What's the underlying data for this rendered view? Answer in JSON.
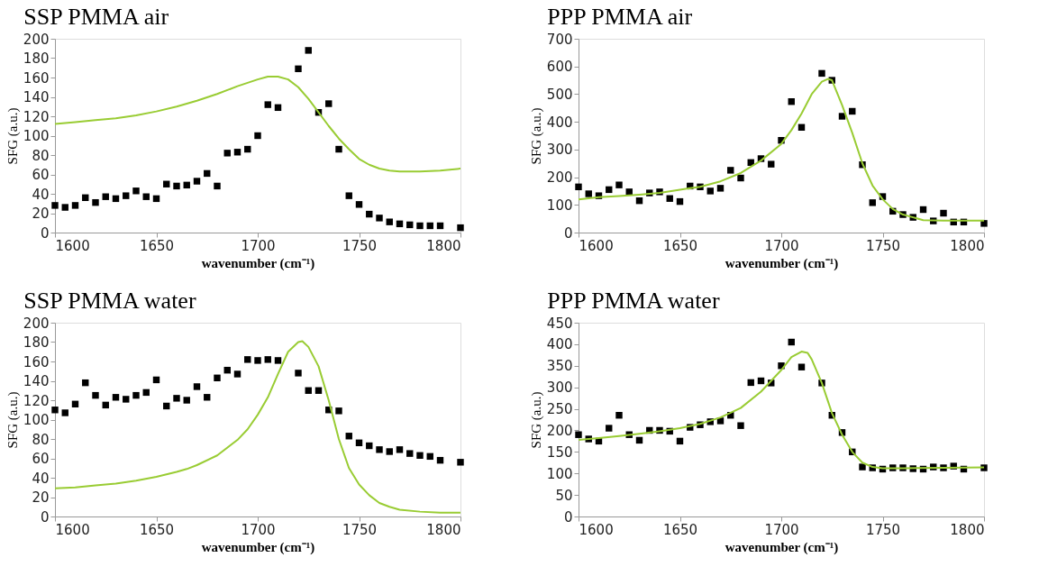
{
  "chart_data": [
    {
      "type": "scatter",
      "title": "SSP PMMA air",
      "xlabel": "wavenumber (cm⁻¹)",
      "ylabel": "SFG (a.u.)",
      "xlim": [
        1600,
        1800
      ],
      "xticks": [
        1600,
        1650,
        1700,
        1750,
        1800
      ],
      "ylim": [
        0,
        200
      ],
      "yticks": [
        0,
        20,
        40,
        60,
        80,
        100,
        120,
        140,
        160,
        180,
        200
      ],
      "series": [
        {
          "marker": "square",
          "color": "#000000",
          "x": [
            1600,
            1605,
            1610,
            1615,
            1620,
            1625,
            1630,
            1635,
            1640,
            1645,
            1650,
            1655,
            1660,
            1665,
            1670,
            1675,
            1680,
            1685,
            1690,
            1695,
            1700,
            1705,
            1710,
            1720,
            1725,
            1730,
            1735,
            1740,
            1745,
            1750,
            1755,
            1760,
            1765,
            1770,
            1775,
            1780,
            1785,
            1790,
            1800
          ],
          "values": [
            28,
            26,
            28,
            36,
            31,
            37,
            35,
            38,
            43,
            37,
            35,
            50,
            48,
            49,
            53,
            61,
            48,
            82,
            83,
            86,
            100,
            132,
            129,
            169,
            188,
            124,
            133,
            86,
            38,
            29,
            19,
            15,
            11,
            9,
            8,
            7,
            7,
            7,
            5
          ]
        },
        {
          "type": "line",
          "color": "#99cc33",
          "x": [
            1600,
            1610,
            1620,
            1630,
            1640,
            1650,
            1660,
            1670,
            1680,
            1690,
            1700,
            1705,
            1710,
            1715,
            1720,
            1725,
            1730,
            1735,
            1740,
            1745,
            1750,
            1755,
            1760,
            1765,
            1770,
            1780,
            1790,
            1800
          ],
          "values": [
            112,
            114,
            116,
            118,
            121,
            125,
            130,
            136,
            143,
            151,
            158,
            161,
            161,
            158,
            150,
            138,
            124,
            110,
            97,
            86,
            76,
            70,
            66,
            64,
            63,
            63,
            64,
            66
          ]
        }
      ]
    },
    {
      "type": "scatter",
      "title": "PPP PMMA air",
      "xlabel": "wavenumber (cm⁻¹)",
      "ylabel": "SFG (a.u.)",
      "xlim": [
        1600,
        1800
      ],
      "xticks": [
        1600,
        1650,
        1700,
        1750,
        1800
      ],
      "ylim": [
        0,
        700
      ],
      "yticks": [
        0,
        100,
        200,
        300,
        400,
        500,
        600,
        700
      ],
      "series": [
        {
          "marker": "square",
          "color": "#000000",
          "x": [
            1600,
            1605,
            1610,
            1615,
            1620,
            1625,
            1630,
            1635,
            1640,
            1645,
            1650,
            1655,
            1660,
            1665,
            1670,
            1675,
            1680,
            1685,
            1690,
            1695,
            1700,
            1705,
            1710,
            1720,
            1725,
            1730,
            1735,
            1740,
            1745,
            1750,
            1755,
            1760,
            1765,
            1770,
            1775,
            1780,
            1785,
            1790,
            1800
          ],
          "values": [
            165,
            140,
            133,
            155,
            172,
            147,
            115,
            143,
            147,
            123,
            112,
            168,
            165,
            150,
            160,
            225,
            197,
            253,
            267,
            247,
            333,
            473,
            380,
            575,
            550,
            420,
            438,
            245,
            108,
            130,
            77,
            65,
            55,
            83,
            42,
            70,
            38,
            38,
            33
          ]
        },
        {
          "type": "line",
          "color": "#99cc33",
          "x": [
            1600,
            1610,
            1620,
            1630,
            1640,
            1650,
            1660,
            1670,
            1680,
            1690,
            1700,
            1705,
            1710,
            1715,
            1720,
            1723,
            1725,
            1730,
            1735,
            1740,
            1745,
            1750,
            1755,
            1760,
            1765,
            1770,
            1780,
            1800
          ],
          "values": [
            120,
            128,
            132,
            137,
            143,
            155,
            165,
            185,
            215,
            260,
            320,
            370,
            430,
            500,
            545,
            555,
            550,
            460,
            360,
            250,
            170,
            120,
            85,
            65,
            55,
            45,
            43,
            43
          ]
        }
      ]
    },
    {
      "type": "scatter",
      "title": "SSP PMMA water",
      "xlabel": "wavenumber (cm⁻¹)",
      "ylabel": "SFG (a.u.)",
      "xlim": [
        1600,
        1800
      ],
      "xticks": [
        1600,
        1650,
        1700,
        1750,
        1800
      ],
      "ylim": [
        0,
        200
      ],
      "yticks": [
        0,
        20,
        40,
        60,
        80,
        100,
        120,
        140,
        160,
        180,
        200
      ],
      "series": [
        {
          "marker": "square",
          "color": "#000000",
          "x": [
            1600,
            1605,
            1610,
            1615,
            1620,
            1625,
            1630,
            1635,
            1640,
            1645,
            1650,
            1655,
            1660,
            1665,
            1670,
            1675,
            1680,
            1685,
            1690,
            1695,
            1700,
            1705,
            1710,
            1720,
            1725,
            1730,
            1735,
            1740,
            1745,
            1750,
            1755,
            1760,
            1765,
            1770,
            1775,
            1780,
            1785,
            1790,
            1800
          ],
          "values": [
            110,
            107,
            116,
            138,
            125,
            115,
            123,
            121,
            125,
            128,
            141,
            114,
            122,
            120,
            134,
            123,
            143,
            151,
            147,
            162,
            161,
            162,
            161,
            148,
            130,
            130,
            110,
            109,
            83,
            76,
            73,
            69,
            67,
            69,
            65,
            63,
            62,
            58,
            56
          ]
        },
        {
          "type": "line",
          "color": "#99cc33",
          "x": [
            1600,
            1610,
            1620,
            1630,
            1640,
            1650,
            1660,
            1665,
            1670,
            1680,
            1690,
            1695,
            1700,
            1705,
            1710,
            1715,
            1720,
            1722,
            1725,
            1730,
            1735,
            1740,
            1745,
            1750,
            1755,
            1760,
            1765,
            1770,
            1780,
            1790,
            1800
          ],
          "values": [
            29,
            30,
            32,
            34,
            37,
            41,
            46,
            49,
            53,
            63,
            79,
            90,
            105,
            123,
            147,
            170,
            180,
            181,
            175,
            155,
            120,
            80,
            50,
            33,
            22,
            14,
            10,
            7,
            5,
            4,
            4
          ]
        }
      ]
    },
    {
      "type": "scatter",
      "title": "PPP PMMA water",
      "xlabel": "wavenumber (cm⁻¹)",
      "ylabel": "SFG (a.u.)",
      "xlim": [
        1600,
        1800
      ],
      "xticks": [
        1600,
        1650,
        1700,
        1750,
        1800
      ],
      "ylim": [
        0,
        450
      ],
      "yticks": [
        0,
        50,
        100,
        150,
        200,
        250,
        300,
        350,
        400,
        450
      ],
      "series": [
        {
          "marker": "square",
          "color": "#000000",
          "x": [
            1600,
            1605,
            1610,
            1615,
            1620,
            1625,
            1630,
            1635,
            1640,
            1645,
            1650,
            1655,
            1660,
            1665,
            1670,
            1675,
            1680,
            1685,
            1690,
            1695,
            1700,
            1705,
            1710,
            1720,
            1725,
            1730,
            1735,
            1740,
            1745,
            1750,
            1755,
            1760,
            1765,
            1770,
            1775,
            1780,
            1785,
            1790,
            1800
          ],
          "values": [
            190,
            180,
            175,
            205,
            235,
            190,
            177,
            200,
            200,
            198,
            175,
            207,
            213,
            220,
            222,
            235,
            211,
            311,
            315,
            310,
            350,
            405,
            347,
            310,
            235,
            195,
            150,
            115,
            113,
            110,
            113,
            113,
            111,
            110,
            115,
            113,
            117,
            110,
            113
          ]
        },
        {
          "type": "line",
          "color": "#99cc33",
          "x": [
            1600,
            1610,
            1620,
            1630,
            1640,
            1650,
            1660,
            1670,
            1680,
            1690,
            1700,
            1705,
            1710,
            1713,
            1715,
            1720,
            1725,
            1730,
            1735,
            1740,
            1745,
            1750,
            1760,
            1780,
            1800
          ],
          "values": [
            178,
            182,
            187,
            192,
            198,
            205,
            215,
            230,
            252,
            290,
            340,
            370,
            383,
            380,
            365,
            310,
            240,
            190,
            150,
            125,
            115,
            112,
            112,
            113,
            114
          ]
        }
      ]
    }
  ]
}
